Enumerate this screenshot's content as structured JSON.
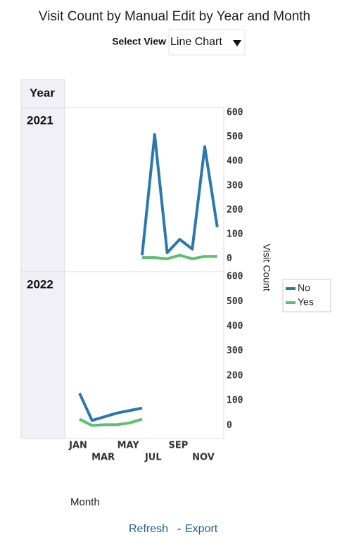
{
  "title": "Visit Count by Manual Edit by Year and Month",
  "select_label": "Select View",
  "select_value": "Line Chart",
  "links": [
    "Refresh",
    "Export"
  ],
  "link_separator": "-",
  "chart_data": {
    "type": "line",
    "row_header": "Year",
    "x_label": "Month",
    "y_label": "Visit Count",
    "facets": [
      "2021",
      "2022"
    ],
    "categories": [
      "JAN",
      null,
      "MAR",
      null,
      "MAY",
      null,
      "JUL",
      null,
      "SEP",
      null,
      "NOV",
      null
    ],
    "series": [
      {
        "name": "No",
        "color": "#2b78b0",
        "values": [
          [
            null,
            null,
            null,
            null,
            null,
            15,
            510,
            25,
            80,
            40,
            460,
            130
          ],
          [
            130,
            20,
            35,
            50,
            60,
            70,
            null,
            null,
            null,
            null,
            null,
            null
          ]
        ]
      },
      {
        "name": "Yes",
        "color": "#5ebf72",
        "values": [
          [
            null,
            null,
            null,
            null,
            null,
            5,
            5,
            0,
            15,
            0,
            10,
            10
          ],
          [
            25,
            0,
            3,
            3,
            10,
            25,
            null,
            null,
            null,
            null,
            null,
            null
          ]
        ]
      }
    ],
    "ylim": [
      -50,
      620
    ],
    "yticks": [
      0,
      100,
      200,
      300,
      400,
      500,
      600
    ]
  }
}
